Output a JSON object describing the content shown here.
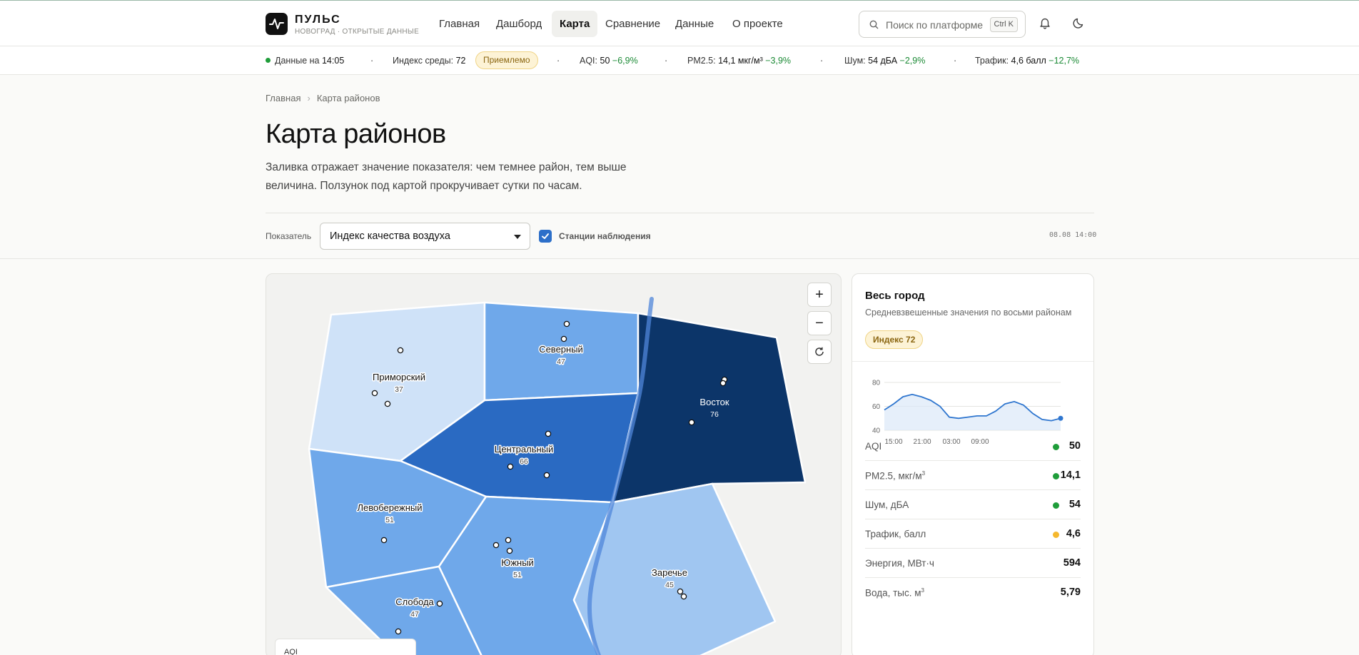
{
  "brand": {
    "name": "ПУЛЬС",
    "subtitle": "НОВОГРАД · ОТКРЫТЫЕ ДАННЫЕ"
  },
  "nav": {
    "items": [
      {
        "label": "Главная"
      },
      {
        "label": "Дашборд"
      },
      {
        "label": "Карта",
        "active": true
      },
      {
        "label": "Сравнение"
      },
      {
        "label": "Данные"
      },
      {
        "label": "О проекте"
      }
    ]
  },
  "search": {
    "placeholder": "Поиск по платформе",
    "shortcut": "Ctrl K"
  },
  "ticker": {
    "data_label": "Данные на",
    "data_time": "14:05",
    "index_label": "Индекс среды:",
    "index_value": "72",
    "index_status": "Приемлемо",
    "aqi_label": "AQI:",
    "aqi_value": "50",
    "aqi_change": "−6,9%",
    "pm_label": "PM2.5:",
    "pm_value": "14,1 мкг/м³",
    "pm_change": "−3,9%",
    "noise_label": "Шум:",
    "noise_value": "54 дБА",
    "noise_change": "−2,9%",
    "traffic_label": "Трафик:",
    "traffic_value": "4,6 балл",
    "traffic_change": "−12,7%"
  },
  "breadcrumb": {
    "home": "Главная",
    "current": "Карта районов"
  },
  "page": {
    "title": "Карта районов",
    "description": "Заливка отражает значение показателя: чем темнее район, тем выше величина. Ползунок под картой прокручивает сутки по часам."
  },
  "controls": {
    "indicator_label": "Показатель",
    "indicator_value": "Индекс качества воздуха",
    "stations_label": "Станции наблюдения",
    "stations_checked": true,
    "timestamp": "08.08 14:00"
  },
  "map": {
    "districts": [
      {
        "name": "Приморский",
        "value": "37",
        "color": "#cfe2f8"
      },
      {
        "name": "Северный",
        "value": "47",
        "color": "#6fa8ea"
      },
      {
        "name": "Восток",
        "value": "76",
        "color": "#0c3569"
      },
      {
        "name": "Центральный",
        "value": "66",
        "color": "#2a6ac2"
      },
      {
        "name": "Левобережный",
        "value": "51",
        "color": "#6fa8ea"
      },
      {
        "name": "Южный",
        "value": "51",
        "color": "#6fa8ea"
      },
      {
        "name": "Заречье",
        "value": "45",
        "color": "#a0c6f1"
      },
      {
        "name": "Слобода",
        "value": "47",
        "color": "#6fa8ea"
      }
    ],
    "zoom_in": "+",
    "zoom_out": "−",
    "legend_title": "AQI"
  },
  "city": {
    "title": "Весь город",
    "subtitle": "Средневзвешенные значения по восьми районам",
    "index_pill": "Индекс 72",
    "spark": {
      "y_ticks": [
        "80",
        "60",
        "40"
      ],
      "x_ticks": [
        "15:00",
        "21:00",
        "03:00",
        "09:00"
      ],
      "ylim": [
        40,
        80
      ],
      "values": [
        57,
        62,
        68,
        70,
        68,
        65,
        60,
        51,
        50,
        51,
        52,
        52,
        56,
        62,
        64,
        61,
        54,
        49,
        48,
        50
      ]
    },
    "metrics": [
      {
        "label": "AQI",
        "value": "50",
        "status_color": "#1f9d3a"
      },
      {
        "label": "PM2.5, мкг/м",
        "sup": "3",
        "value": "14,1",
        "status_color": "#1f9d3a"
      },
      {
        "label": "Шум, дБА",
        "value": "54",
        "status_color": "#1f9d3a"
      },
      {
        "label": "Трафик, балл",
        "value": "4,6",
        "status_color": "#f5b82e"
      },
      {
        "label": "Энергия, МВт·ч",
        "value": "594"
      },
      {
        "label": "Вода, тыс. м",
        "sup": "3",
        "value": "5,79"
      }
    ]
  }
}
